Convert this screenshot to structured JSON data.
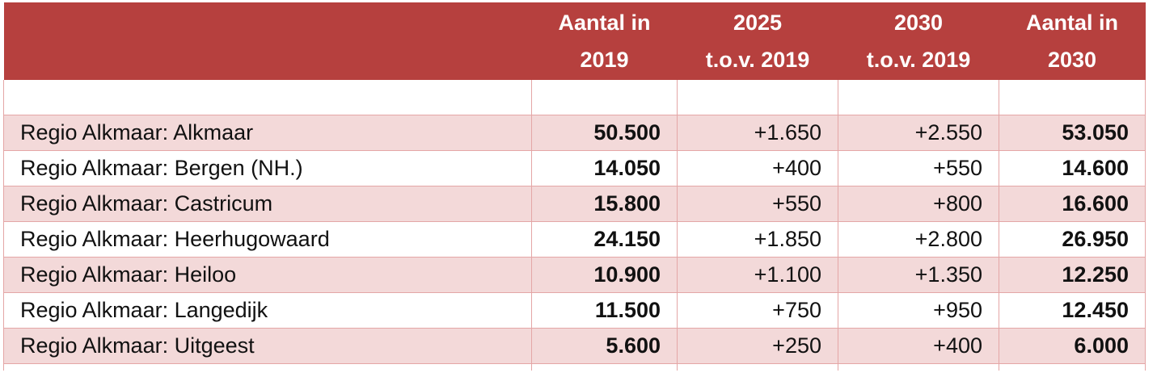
{
  "table": {
    "headers": [
      {
        "line1": "",
        "line2": ""
      },
      {
        "line1": "Aantal in",
        "line2": "2019"
      },
      {
        "line1": "2025",
        "line2": "t.o.v. 2019"
      },
      {
        "line1": "2030",
        "line2": "t.o.v. 2019"
      },
      {
        "line1": "Aantal in",
        "line2": "2030"
      }
    ],
    "rows": [
      {
        "name": "Regio Alkmaar: Alkmaar",
        "count_2019": "50.500",
        "delta_2025": "+1.650",
        "delta_2030": "+2.550",
        "count_2030": "53.050"
      },
      {
        "name": "Regio Alkmaar: Bergen (NH.)",
        "count_2019": "14.050",
        "delta_2025": "+400",
        "delta_2030": "+550",
        "count_2030": "14.600"
      },
      {
        "name": "Regio Alkmaar: Castricum",
        "count_2019": "15.800",
        "delta_2025": "+550",
        "delta_2030": "+800",
        "count_2030": "16.600"
      },
      {
        "name": "Regio Alkmaar: Heerhugowaard",
        "count_2019": "24.150",
        "delta_2025": "+1.850",
        "delta_2030": "+2.800",
        "count_2030": "26.950"
      },
      {
        "name": "Regio Alkmaar: Heiloo",
        "count_2019": "10.900",
        "delta_2025": "+1.100",
        "delta_2030": "+1.350",
        "count_2030": "12.250"
      },
      {
        "name": "Regio Alkmaar: Langedijk",
        "count_2019": "11.500",
        "delta_2025": "+750",
        "delta_2030": "+950",
        "count_2030": "12.450"
      },
      {
        "name": "Regio Alkmaar: Uitgeest",
        "count_2019": "5.600",
        "delta_2025": "+250",
        "delta_2030": "+400",
        "count_2030": "6.000"
      }
    ]
  },
  "colors": {
    "header_bg": "#b6403e",
    "header_text": "#ffffff",
    "row_stripe": "#f3d9d9",
    "border": "#e4a6a6"
  }
}
